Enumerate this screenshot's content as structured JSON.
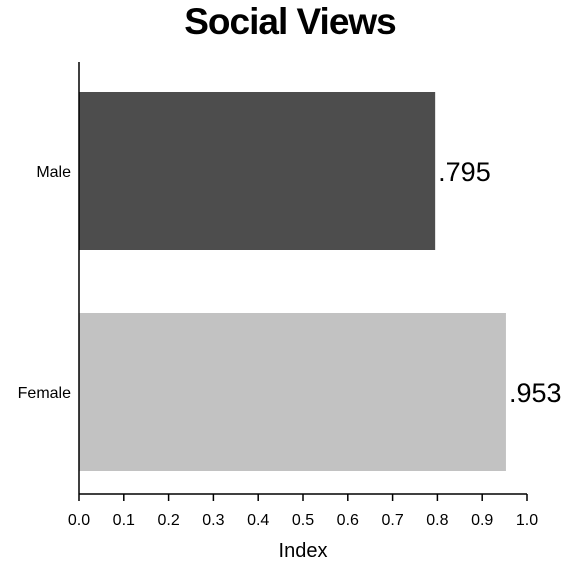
{
  "chart_data": {
    "type": "bar",
    "orientation": "horizontal",
    "title": "Social Views",
    "xlabel": "Index",
    "ylabel": "",
    "xlim": [
      0.0,
      1.0
    ],
    "ticks": [
      "0.0",
      "0.1",
      "0.2",
      "0.3",
      "0.4",
      "0.5",
      "0.6",
      "0.7",
      "0.8",
      "0.9",
      "1.0"
    ],
    "grid": false,
    "bars": [
      {
        "category": "Male",
        "value": 0.795,
        "label": ".795",
        "color": "#4d4d4d"
      },
      {
        "category": "Female",
        "value": 0.953,
        "label": ".953",
        "color": "#c2c2c2"
      }
    ]
  }
}
